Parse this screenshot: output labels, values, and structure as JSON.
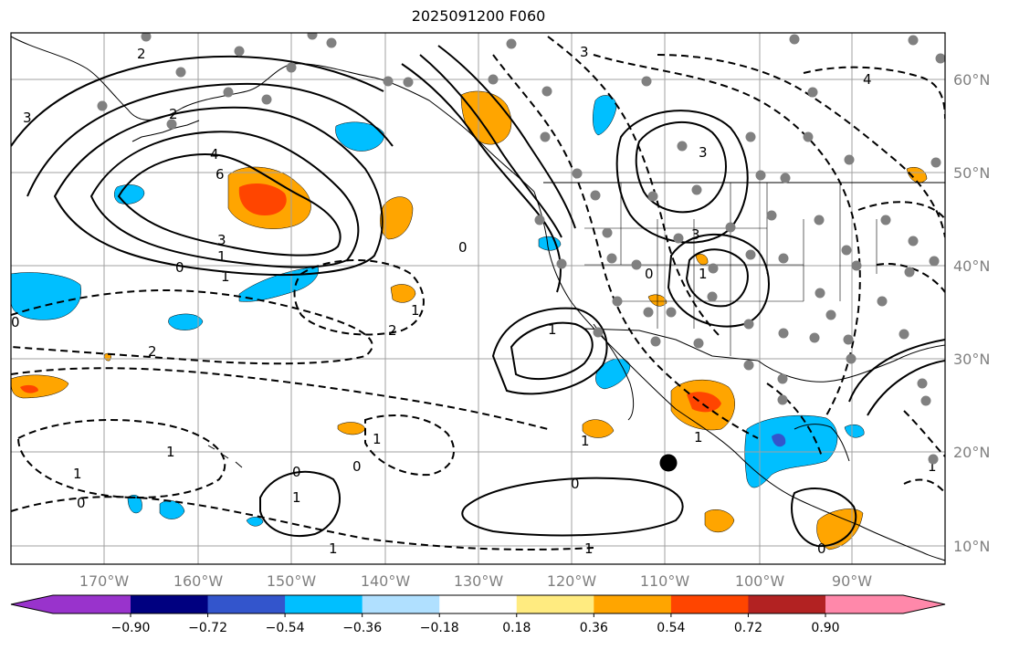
{
  "title": "2025091200 F060",
  "lon_ticks": [
    "170°W",
    "160°W",
    "150°W",
    "140°W",
    "130°W",
    "120°W",
    "110°W",
    "100°W",
    "90°W"
  ],
  "lat_ticks": [
    "60°N",
    "50°N",
    "40°N",
    "30°N",
    "20°N",
    "10°N"
  ],
  "colorbar": {
    "colors": [
      "#9933cc",
      "#000080",
      "#3355cc",
      "#00bfff",
      "#b0e0ff",
      "#ffffff",
      "#ffeb80",
      "#ffa500",
      "#ff4500",
      "#b22222",
      "#ff88aa"
    ],
    "labels": [
      "−0.90",
      "−0.72",
      "−0.54",
      "−0.36",
      "−0.18",
      "0.18",
      "0.36",
      "0.54",
      "0.72",
      "0.90"
    ]
  },
  "contour_labels": [
    "2",
    "2",
    "3",
    "4",
    "6",
    "3",
    "1",
    "0",
    "1",
    "2",
    "2",
    "1",
    "1",
    "0",
    "0",
    "0",
    "1",
    "0",
    "1",
    "1",
    "3",
    "3",
    "1",
    "3",
    "0",
    "0",
    "1",
    "1",
    "0",
    "1",
    "0",
    "1",
    "4",
    "1",
    "1"
  ],
  "colors": {
    "grid": "#a0a0a0",
    "land_line": "#000000",
    "station": "#808080"
  }
}
